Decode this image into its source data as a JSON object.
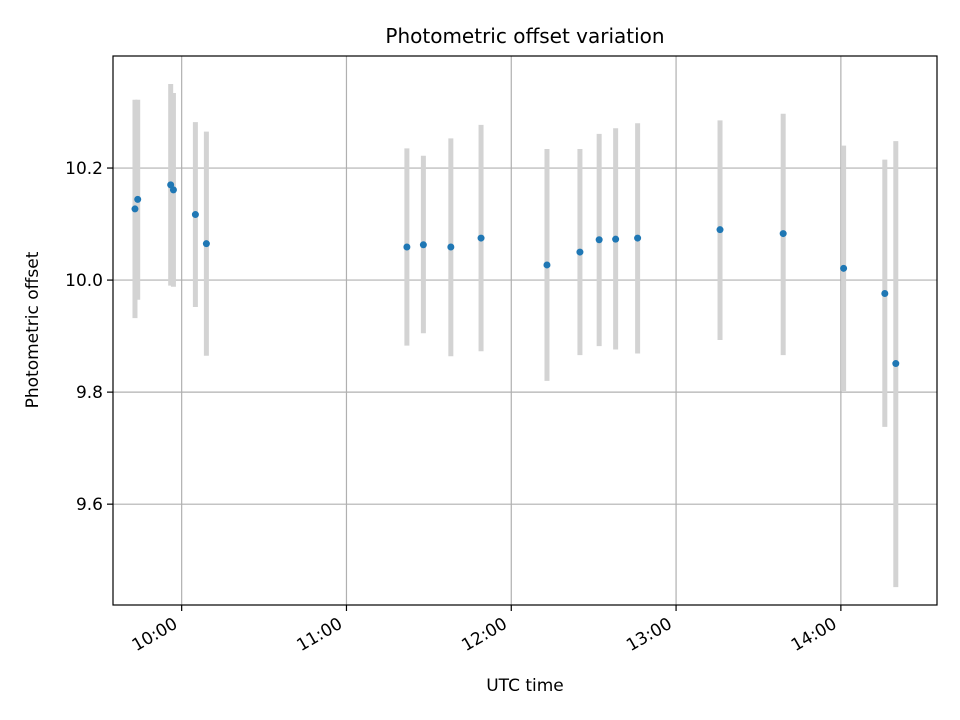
{
  "chart_data": {
    "type": "scatter",
    "title": "Photometric offset variation",
    "xlabel": "UTC time",
    "ylabel": "Photometric offset",
    "xlim": [
      "09:35",
      "14:35"
    ],
    "ylim": [
      9.42,
      10.4
    ],
    "grid": true,
    "x_ticks": [
      "10:00",
      "11:00",
      "12:00",
      "13:00",
      "14:00"
    ],
    "y_ticks": [
      9.6,
      9.8,
      10.0,
      10.2
    ],
    "y_tick_labels": [
      "9.6",
      "9.8",
      "10.0",
      "10.2"
    ],
    "colors": {
      "point": "#1f77b4",
      "errorbar": "#d3d3d3",
      "grid": "#b0b0b0"
    },
    "points": [
      {
        "x": "09:43",
        "y": 10.127,
        "ylo": 9.932,
        "yhi": 10.322
      },
      {
        "x": "09:44",
        "y": 10.144,
        "ylo": 9.965,
        "yhi": 10.322
      },
      {
        "x": "09:56",
        "y": 10.17,
        "ylo": 9.99,
        "yhi": 10.35
      },
      {
        "x": "09:57",
        "y": 10.161,
        "ylo": 9.988,
        "yhi": 10.334
      },
      {
        "x": "10:05",
        "y": 10.117,
        "ylo": 9.952,
        "yhi": 10.282
      },
      {
        "x": "10:09",
        "y": 10.065,
        "ylo": 9.865,
        "yhi": 10.265
      },
      {
        "x": "11:22",
        "y": 10.059,
        "ylo": 9.883,
        "yhi": 10.235
      },
      {
        "x": "11:28",
        "y": 10.063,
        "ylo": 9.905,
        "yhi": 10.222
      },
      {
        "x": "11:38",
        "y": 10.059,
        "ylo": 9.864,
        "yhi": 10.253
      },
      {
        "x": "11:49",
        "y": 10.075,
        "ylo": 9.873,
        "yhi": 10.277
      },
      {
        "x": "12:13",
        "y": 10.027,
        "ylo": 9.82,
        "yhi": 10.234
      },
      {
        "x": "12:25",
        "y": 10.05,
        "ylo": 9.866,
        "yhi": 10.234
      },
      {
        "x": "12:32",
        "y": 10.072,
        "ylo": 9.882,
        "yhi": 10.261
      },
      {
        "x": "12:38",
        "y": 10.073,
        "ylo": 9.876,
        "yhi": 10.271
      },
      {
        "x": "12:46",
        "y": 10.075,
        "ylo": 9.869,
        "yhi": 10.28
      },
      {
        "x": "13:16",
        "y": 10.09,
        "ylo": 9.893,
        "yhi": 10.285
      },
      {
        "x": "13:39",
        "y": 10.083,
        "ylo": 9.866,
        "yhi": 10.297
      },
      {
        "x": "14:01",
        "y": 10.021,
        "ylo": 9.802,
        "yhi": 10.24
      },
      {
        "x": "14:16",
        "y": 9.976,
        "ylo": 9.738,
        "yhi": 10.215
      },
      {
        "x": "14:20",
        "y": 9.851,
        "ylo": 9.452,
        "yhi": 10.248
      }
    ]
  }
}
